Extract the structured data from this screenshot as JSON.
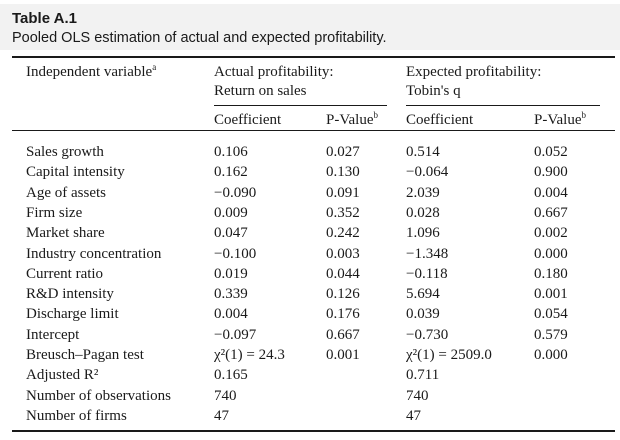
{
  "caption": {
    "label": "Table A.1",
    "title": "Pooled OLS estimation of actual and expected profitability."
  },
  "header": {
    "row_label": "Independent variable",
    "row_label_note": "a",
    "group1_line1": "Actual profitability:",
    "group1_line2": "Return on sales",
    "group2_line1": "Expected profitability:",
    "group2_line2": "Tobin's q",
    "coef1": "Coefficient",
    "pval1": "P-Value",
    "pval1_note": "b",
    "coef2": "Coefficient",
    "pval2": "P-Value",
    "pval2_note": "b"
  },
  "rows": [
    {
      "label": "Sales growth",
      "c1": "0.106",
      "p1": "0.027",
      "c2": "0.514",
      "p2": "0.052"
    },
    {
      "label": "Capital intensity",
      "c1": "0.162",
      "p1": "0.130",
      "c2": "−0.064",
      "p2": "0.900"
    },
    {
      "label": "Age of assets",
      "c1": "−0.090",
      "p1": "0.091",
      "c2": "2.039",
      "p2": "0.004"
    },
    {
      "label": "Firm size",
      "c1": "0.009",
      "p1": "0.352",
      "c2": "0.028",
      "p2": "0.667"
    },
    {
      "label": "Market share",
      "c1": "0.047",
      "p1": "0.242",
      "c2": "1.096",
      "p2": "0.002"
    },
    {
      "label": "Industry concentration",
      "c1": "−0.100",
      "p1": "0.003",
      "c2": "−1.348",
      "p2": "0.000"
    },
    {
      "label": "Current ratio",
      "c1": "0.019",
      "p1": "0.044",
      "c2": "−0.118",
      "p2": "0.180"
    },
    {
      "label": "R&D intensity",
      "c1": "0.339",
      "p1": "0.126",
      "c2": "5.694",
      "p2": "0.001"
    },
    {
      "label": "Discharge limit",
      "c1": "0.004",
      "p1": "0.176",
      "c2": "0.039",
      "p2": "0.054"
    },
    {
      "label": "Intercept",
      "c1": "−0.097",
      "p1": "0.667",
      "c2": "−0.730",
      "p2": "0.579"
    },
    {
      "label": "Breusch–Pagan test",
      "c1": "χ²(1) = 24.3",
      "p1": "0.001",
      "c2": "χ²(1) = 2509.0",
      "p2": "0.000"
    },
    {
      "label": "Adjusted R²",
      "c1": "0.165",
      "p1": "",
      "c2": "0.711",
      "p2": ""
    },
    {
      "label": "Number of observations",
      "c1": "740",
      "p1": "",
      "c2": "740",
      "p2": ""
    },
    {
      "label": "Number of firms",
      "c1": "47",
      "p1": "",
      "c2": "47",
      "p2": ""
    }
  ]
}
